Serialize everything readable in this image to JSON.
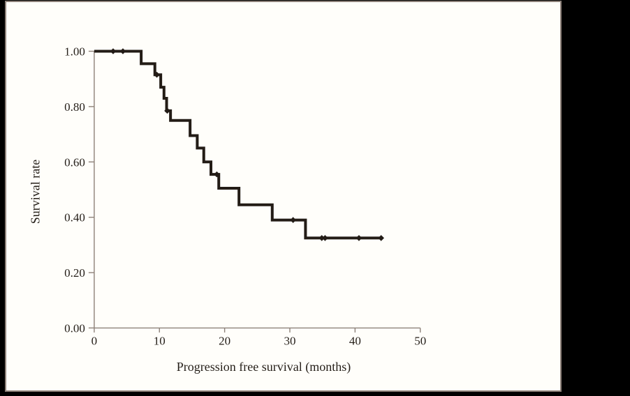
{
  "figure": {
    "background": "#000000",
    "panel_bg": "#fffefa",
    "panel_border": "#8d8179"
  },
  "chart_data": {
    "type": "line",
    "subtype": "kaplan-meier-step",
    "title": "",
    "xlabel": "Progression free survival (months)",
    "ylabel": "Survival rate",
    "xlim": [
      0,
      50
    ],
    "ylim": [
      0.0,
      1.0
    ],
    "grid": false,
    "legend": false,
    "xticks": [
      0,
      10,
      20,
      30,
      40,
      50
    ],
    "yticks": [
      0.0,
      0.2,
      0.4,
      0.6,
      0.8,
      1.0
    ],
    "ytick_labels": [
      "0.00",
      "0.20",
      "0.40",
      "0.60",
      "0.80",
      "1.00"
    ],
    "line_color": "#231c16",
    "axis_color": "#8d8179",
    "text_color": "#241e18",
    "series": [
      {
        "name": "Progression free survival",
        "start": {
          "t": 0,
          "s": 1.0
        },
        "drops": [
          {
            "t": 7.2,
            "s": 0.955
          },
          {
            "t": 9.3,
            "s": 0.915
          },
          {
            "t": 10.2,
            "s": 0.87
          },
          {
            "t": 10.7,
            "s": 0.83
          },
          {
            "t": 11.1,
            "s": 0.785
          },
          {
            "t": 11.7,
            "s": 0.75
          },
          {
            "t": 14.7,
            "s": 0.695
          },
          {
            "t": 15.8,
            "s": 0.65
          },
          {
            "t": 16.8,
            "s": 0.6
          },
          {
            "t": 17.9,
            "s": 0.555
          },
          {
            "t": 19.1,
            "s": 0.505
          },
          {
            "t": 22.2,
            "s": 0.445
          },
          {
            "t": 27.3,
            "s": 0.39
          },
          {
            "t": 32.4,
            "s": 0.325
          }
        ],
        "end_t": 44.0,
        "censor_marks": [
          {
            "t": 2.9,
            "s": 1.0
          },
          {
            "t": 4.4,
            "s": 1.0
          },
          {
            "t": 9.6,
            "s": 0.915
          },
          {
            "t": 11.2,
            "s": 0.785
          },
          {
            "t": 18.8,
            "s": 0.555
          },
          {
            "t": 30.5,
            "s": 0.39
          },
          {
            "t": 34.9,
            "s": 0.325
          },
          {
            "t": 35.4,
            "s": 0.325
          },
          {
            "t": 40.6,
            "s": 0.325
          },
          {
            "t": 44.0,
            "s": 0.325
          }
        ]
      }
    ]
  }
}
